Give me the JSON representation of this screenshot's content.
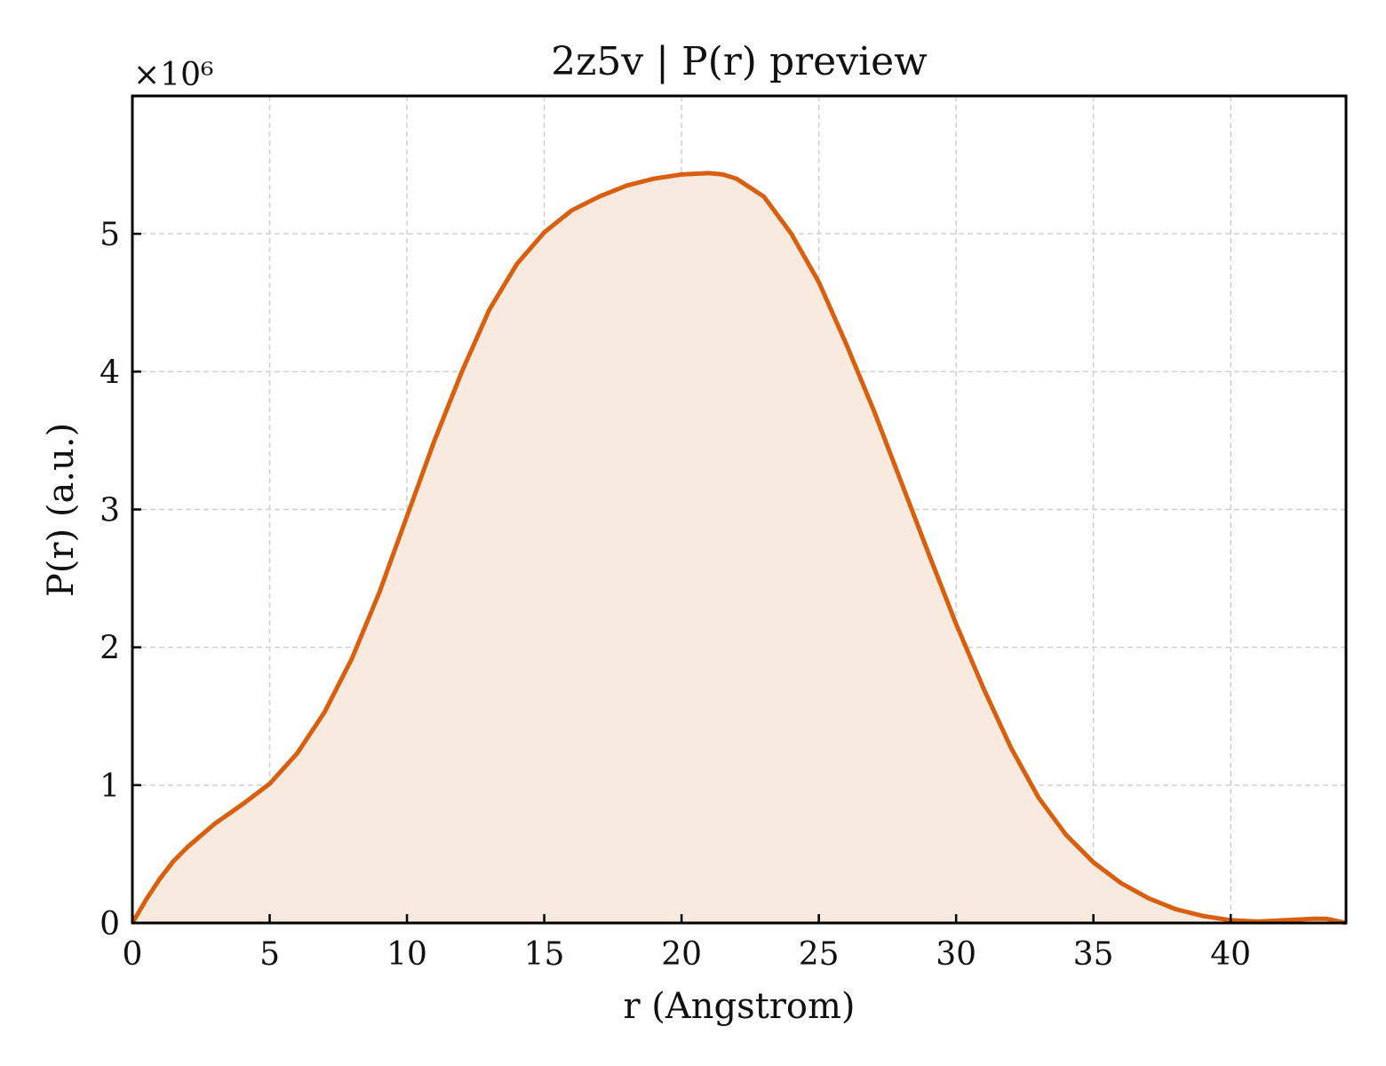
{
  "chart_data": {
    "type": "area",
    "title": "2z5v | P(r) preview",
    "xlabel": "r (Angstrom)",
    "ylabel": "P(r) (a.u.)",
    "y_scale_label": "×10⁶",
    "xlim": [
      0,
      44.2
    ],
    "ylim": [
      0,
      6.0
    ],
    "xticks": [
      0,
      5,
      10,
      15,
      20,
      25,
      30,
      35,
      40
    ],
    "yticks": [
      0,
      1,
      2,
      3,
      4,
      5
    ],
    "grid": true,
    "line_color": "#d95f0e",
    "fill_color": "#f8eadf",
    "series": [
      {
        "x": [
          0,
          0.5,
          1,
          1.5,
          2,
          3,
          4,
          5,
          6,
          7,
          8,
          9,
          10,
          11,
          12,
          13,
          14,
          15,
          16,
          17,
          18,
          19,
          20,
          21,
          21.5,
          22,
          23,
          24,
          25,
          26,
          27,
          28,
          29,
          30,
          31,
          32,
          33,
          34,
          35,
          36,
          37,
          38,
          39,
          40,
          41,
          42,
          43,
          43.5,
          44.2
        ],
        "y": [
          0.0,
          0.17,
          0.32,
          0.45,
          0.55,
          0.72,
          0.86,
          1.01,
          1.23,
          1.53,
          1.92,
          2.4,
          2.95,
          3.5,
          4.0,
          4.45,
          4.78,
          5.01,
          5.17,
          5.27,
          5.35,
          5.4,
          5.43,
          5.44,
          5.43,
          5.4,
          5.27,
          5.0,
          4.65,
          4.2,
          3.72,
          3.2,
          2.68,
          2.17,
          1.7,
          1.27,
          0.91,
          0.64,
          0.44,
          0.29,
          0.18,
          0.1,
          0.05,
          0.02,
          0.01,
          0.02,
          0.03,
          0.03,
          0.0
        ]
      }
    ]
  }
}
